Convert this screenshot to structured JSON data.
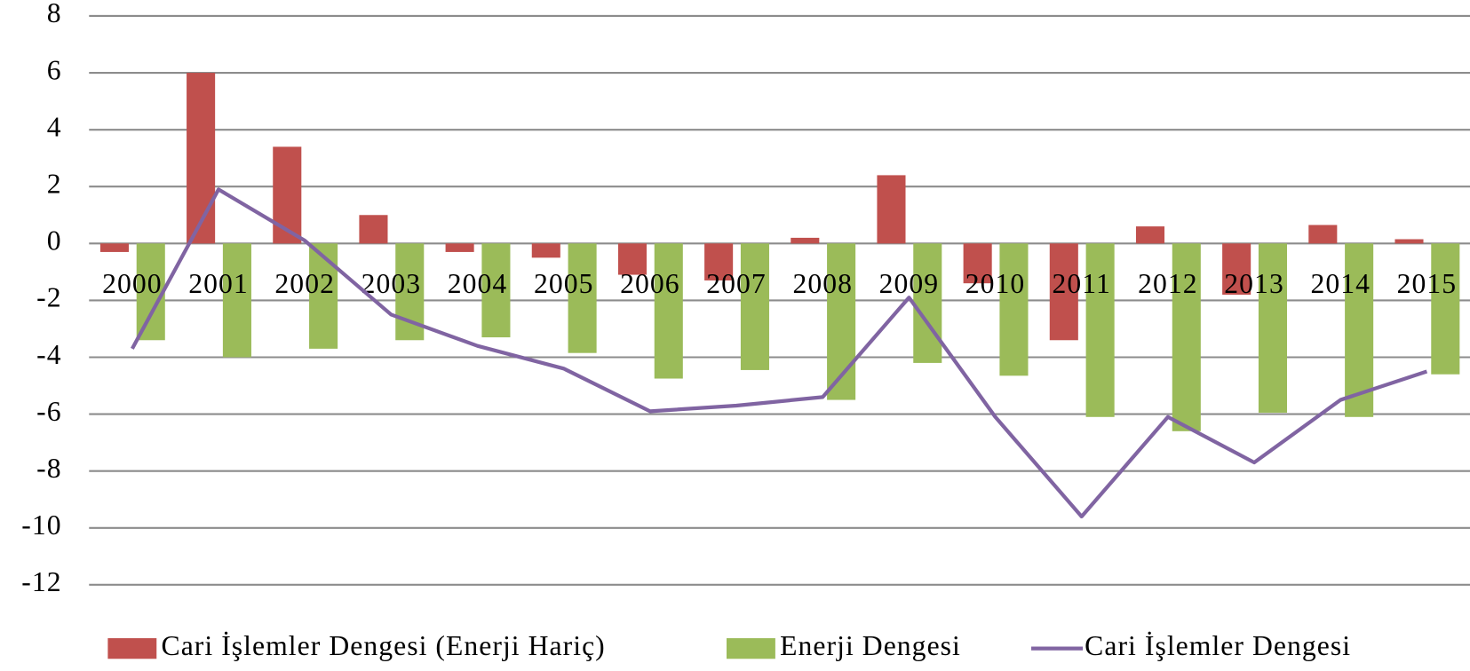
{
  "chart_data": {
    "type": "bar",
    "categories": [
      "2000",
      "2001",
      "2002",
      "2003",
      "2004",
      "2005",
      "2006",
      "2007",
      "2008",
      "2009",
      "2010",
      "2011",
      "2012",
      "2013",
      "2014",
      "2015"
    ],
    "series": [
      {
        "name": "Cari İşlemler Dengesi (Enerji Hariç)",
        "type": "bar",
        "color": "#c0504d",
        "values": [
          -0.3,
          6.0,
          3.4,
          1.0,
          -0.3,
          -0.5,
          -1.1,
          -1.3,
          0.2,
          2.4,
          -1.4,
          -3.4,
          0.6,
          -1.8,
          0.65,
          0.15
        ]
      },
      {
        "name": "Enerji Dengesi",
        "type": "bar",
        "color": "#9bbb59",
        "values": [
          -3.4,
          -4.0,
          -3.7,
          -3.4,
          -3.3,
          -3.85,
          -4.75,
          -4.45,
          -5.5,
          -4.2,
          -4.65,
          -6.1,
          -6.6,
          -5.95,
          -6.1,
          -4.6
        ]
      },
      {
        "name": "Cari İşlemler Dengesi",
        "type": "line",
        "color": "#8064a2",
        "values": [
          -3.7,
          1.9,
          0.1,
          -2.5,
          -3.6,
          -4.4,
          -5.9,
          -5.7,
          -5.4,
          -1.9,
          -6.1,
          -9.6,
          -6.1,
          -7.7,
          -5.5,
          -4.5
        ]
      }
    ],
    "ylim": [
      -12,
      8
    ],
    "yticks": [
      -12,
      -10,
      -8,
      -6,
      -4,
      -2,
      0,
      2,
      4,
      6,
      8
    ],
    "grid": true,
    "legend": "bottom"
  }
}
